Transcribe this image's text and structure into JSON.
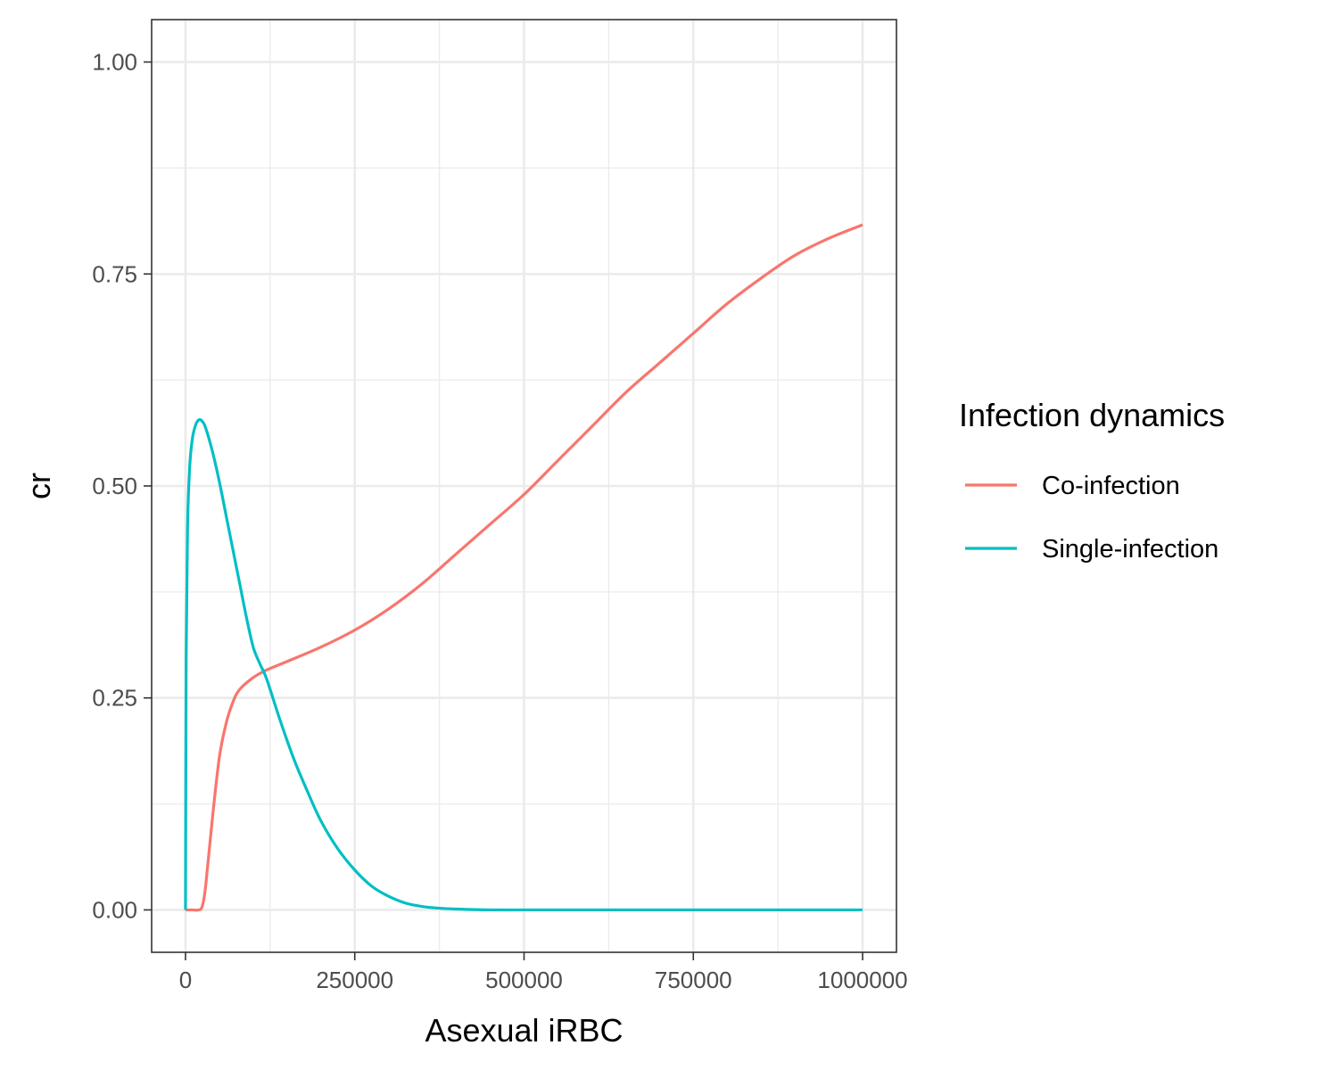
{
  "chart_data": {
    "type": "line",
    "title": "",
    "xlabel": "Asexual iRBC",
    "ylabel": "cr",
    "xlim": [
      -50000,
      1050000
    ],
    "ylim": [
      -0.05,
      1.05
    ],
    "x_ticks": [
      0,
      250000,
      500000,
      750000,
      1000000
    ],
    "x_tick_labels": [
      "0",
      "250000",
      "500000",
      "750000",
      "1000000"
    ],
    "y_ticks": [
      0,
      0.25,
      0.5,
      0.75,
      1
    ],
    "y_tick_labels": [
      "0.00",
      "0.25",
      "0.50",
      "0.75",
      "1.00"
    ],
    "grid": true,
    "legend": {
      "title": "Infection dynamics",
      "position": "right"
    },
    "series": [
      {
        "name": "Co-infection",
        "color": "#F8766D",
        "x": [
          0,
          10000,
          20000,
          25000,
          30000,
          40000,
          50000,
          60000,
          70000,
          80000,
          100000,
          120000,
          150000,
          200000,
          250000,
          300000,
          350000,
          400000,
          450000,
          500000,
          550000,
          600000,
          650000,
          700000,
          750000,
          800000,
          850000,
          900000,
          950000,
          1000000
        ],
        "y": [
          0.0,
          0.0,
          0.0,
          0.005,
          0.03,
          0.11,
          0.18,
          0.22,
          0.245,
          0.26,
          0.274,
          0.283,
          0.293,
          0.31,
          0.33,
          0.355,
          0.385,
          0.42,
          0.455,
          0.49,
          0.53,
          0.57,
          0.61,
          0.645,
          0.68,
          0.715,
          0.745,
          0.772,
          0.792,
          0.808
        ]
      },
      {
        "name": "Single-infection",
        "color": "#00BFC4",
        "x": [
          0,
          1000,
          3000,
          6000,
          10000,
          15000,
          20000,
          25000,
          30000,
          40000,
          50000,
          60000,
          70000,
          80000,
          90000,
          100000,
          110000,
          120000,
          140000,
          160000,
          180000,
          200000,
          225000,
          250000,
          275000,
          300000,
          325000,
          350000,
          375000,
          400000,
          450000,
          500000,
          600000,
          700000,
          800000,
          900000,
          1000000
        ],
        "y": [
          0.0,
          0.3,
          0.45,
          0.52,
          0.555,
          0.572,
          0.578,
          0.576,
          0.568,
          0.54,
          0.505,
          0.465,
          0.425,
          0.385,
          0.345,
          0.31,
          0.29,
          0.272,
          0.223,
          0.178,
          0.14,
          0.105,
          0.072,
          0.047,
          0.028,
          0.016,
          0.008,
          0.004,
          0.002,
          0.001,
          0.0,
          0.0,
          0.0,
          0.0,
          0.0,
          0.0,
          0.0
        ]
      }
    ]
  }
}
